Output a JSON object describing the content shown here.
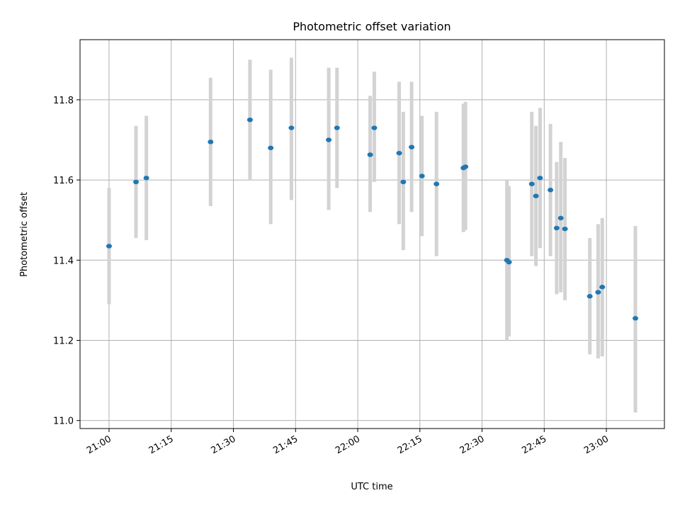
{
  "chart_data": {
    "type": "scatter",
    "title": "Photometric offset variation",
    "xlabel": "UTC time",
    "ylabel": "Photometric offset",
    "grid": true,
    "xlim": [
      "20:53",
      "23:14"
    ],
    "ylim": [
      10.98,
      11.95
    ],
    "x_ticks": [
      "21:00",
      "21:15",
      "21:30",
      "21:45",
      "22:00",
      "22:15",
      "22:30",
      "22:45",
      "23:00"
    ],
    "y_ticks": [
      "11.0",
      "11.2",
      "11.4",
      "11.6",
      "11.8"
    ],
    "colors": {
      "points": "#1f77b4",
      "errorbars": "#d3d3d3"
    },
    "series": [
      {
        "points": [
          {
            "x": "21:00",
            "y": 11.435,
            "err_low": 11.29,
            "err_high": 11.58
          },
          {
            "x": "21:06.5",
            "y": 11.595,
            "err_low": 11.455,
            "err_high": 11.735
          },
          {
            "x": "21:09",
            "y": 11.605,
            "err_low": 11.45,
            "err_high": 11.76
          },
          {
            "x": "21:24.5",
            "y": 11.695,
            "err_low": 11.535,
            "err_high": 11.855
          },
          {
            "x": "21:34",
            "y": 11.75,
            "err_low": 11.6,
            "err_high": 11.9
          },
          {
            "x": "21:39",
            "y": 11.68,
            "err_low": 11.49,
            "err_high": 11.875
          },
          {
            "x": "21:44",
            "y": 11.73,
            "err_low": 11.55,
            "err_high": 11.905
          },
          {
            "x": "21:53",
            "y": 11.7,
            "err_low": 11.525,
            "err_high": 11.88
          },
          {
            "x": "21:55",
            "y": 11.73,
            "err_low": 11.58,
            "err_high": 11.88
          },
          {
            "x": "22:03",
            "y": 11.663,
            "err_low": 11.52,
            "err_high": 11.81
          },
          {
            "x": "22:04",
            "y": 11.73,
            "err_low": 11.595,
            "err_high": 11.87
          },
          {
            "x": "22:10",
            "y": 11.667,
            "err_low": 11.49,
            "err_high": 11.845
          },
          {
            "x": "22:11",
            "y": 11.595,
            "err_low": 11.425,
            "err_high": 11.77
          },
          {
            "x": "22:13",
            "y": 11.682,
            "err_low": 11.52,
            "err_high": 11.845
          },
          {
            "x": "22:15.5",
            "y": 11.61,
            "err_low": 11.46,
            "err_high": 11.76
          },
          {
            "x": "22:19",
            "y": 11.59,
            "err_low": 11.41,
            "err_high": 11.77
          },
          {
            "x": "22:25.5",
            "y": 11.63,
            "err_low": 11.47,
            "err_high": 11.79
          },
          {
            "x": "22:26",
            "y": 11.633,
            "err_low": 11.475,
            "err_high": 11.795
          },
          {
            "x": "22:36",
            "y": 11.4,
            "err_low": 11.2,
            "err_high": 11.6
          },
          {
            "x": "22:36.5",
            "y": 11.395,
            "err_low": 11.21,
            "err_high": 11.585
          },
          {
            "x": "22:42",
            "y": 11.59,
            "err_low": 11.41,
            "err_high": 11.77
          },
          {
            "x": "22:43",
            "y": 11.56,
            "err_low": 11.385,
            "err_high": 11.735
          },
          {
            "x": "22:44",
            "y": 11.605,
            "err_low": 11.43,
            "err_high": 11.78
          },
          {
            "x": "22:46.5",
            "y": 11.575,
            "err_low": 11.41,
            "err_high": 11.74
          },
          {
            "x": "22:48",
            "y": 11.48,
            "err_low": 11.315,
            "err_high": 11.645
          },
          {
            "x": "22:49",
            "y": 11.505,
            "err_low": 11.32,
            "err_high": 11.695
          },
          {
            "x": "22:50",
            "y": 11.478,
            "err_low": 11.3,
            "err_high": 11.655
          },
          {
            "x": "22:56",
            "y": 11.31,
            "err_low": 11.165,
            "err_high": 11.455
          },
          {
            "x": "22:58",
            "y": 11.32,
            "err_low": 11.155,
            "err_high": 11.49
          },
          {
            "x": "22:59",
            "y": 11.333,
            "err_low": 11.16,
            "err_high": 11.505
          },
          {
            "x": "23:07",
            "y": 11.255,
            "err_low": 11.02,
            "err_high": 11.485
          }
        ]
      }
    ]
  }
}
